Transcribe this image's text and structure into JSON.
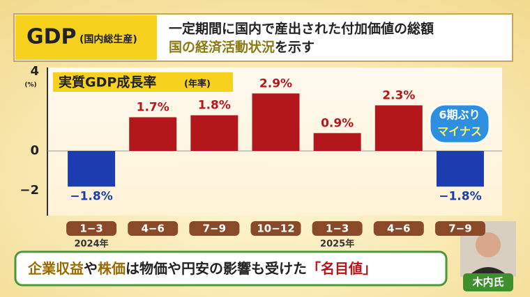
{
  "header": {
    "title": "GDP",
    "title_note": "(国内総生産)",
    "line1": "一定期間に国内で産出された付加価値の総額",
    "line2_highlight": "国の経済活動状況",
    "line2_rest": "を示す"
  },
  "chart_data": {
    "type": "bar",
    "title": "実質GDP成長率",
    "title_note": "(年率)",
    "y_unit": "(%)",
    "categories": [
      "1−3",
      "4−6",
      "7−9",
      "10−12",
      "1−3",
      "4−6",
      "7−9"
    ],
    "year_labels": [
      {
        "index": 0,
        "label": "2024年"
      },
      {
        "index": 4,
        "label": "2025年"
      }
    ],
    "values": [
      -1.8,
      1.7,
      1.8,
      2.9,
      0.9,
      2.3,
      -1.8
    ],
    "value_labels": [
      "−1.8%",
      "1.7%",
      "1.8%",
      "2.9%",
      "0.9%",
      "2.3%",
      "−1.8%"
    ],
    "colors": [
      "#1c3db0",
      "#b3161b",
      "#b3161b",
      "#b3161b",
      "#b3161b",
      "#b3161b",
      "#1c3db0"
    ],
    "ylim": [
      -3.2,
      4
    ],
    "yticks": [
      4,
      0,
      {
        "value": -2,
        "label": "−2"
      }
    ],
    "badge": [
      "6期ぶり",
      "マイナス"
    ]
  },
  "caption": {
    "part1": "企業収益",
    "part2": "や",
    "part3": "株価",
    "part4": "は物価や円安の影響も受けた",
    "part5": "「名目値」"
  },
  "speaker": "木内氏"
}
